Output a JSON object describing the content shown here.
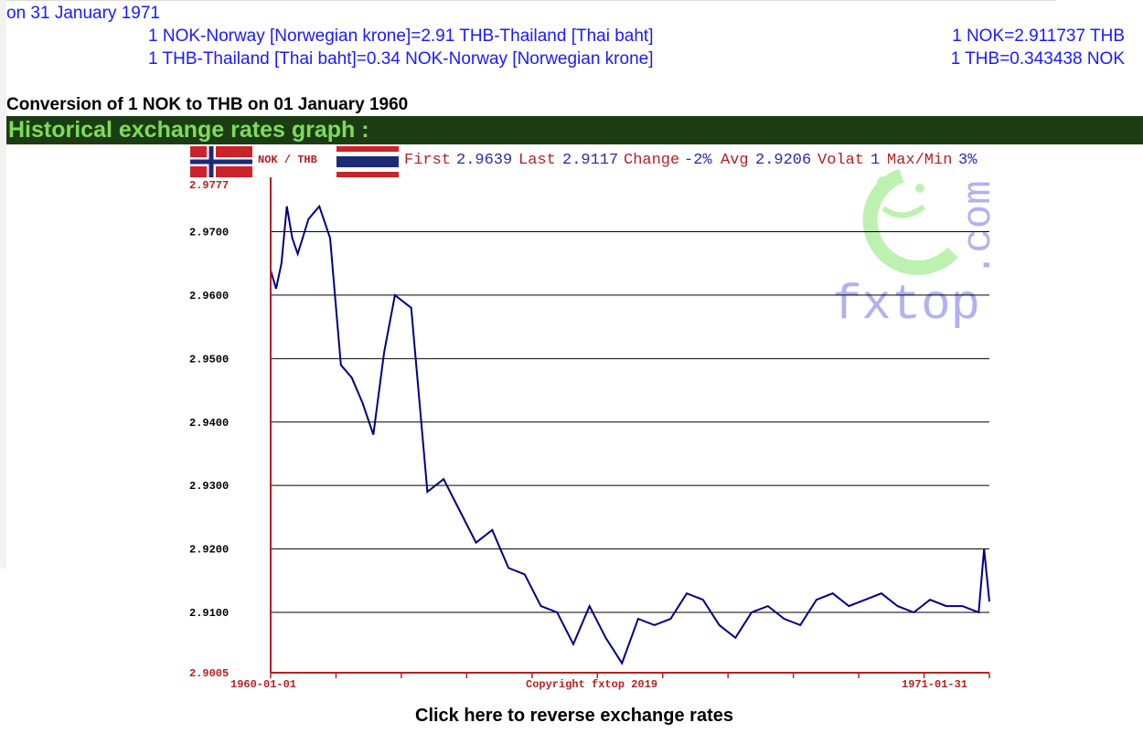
{
  "header": {
    "date_line": "on 31 January 1971",
    "rate_lines": [
      {
        "left": "1 NOK-Norway [Norwegian krone]=2.91 THB-Thailand [Thai baht]",
        "right": "1 NOK=2.911737 THB"
      },
      {
        "left": "1 THB-Thailand [Thai baht]=0.34 NOK-Norway [Norwegian krone]",
        "right": "1 THB=0.343438 NOK"
      }
    ],
    "conversion_title": "Conversion of 1 NOK to THB on 01 January 1960"
  },
  "graph_section": {
    "title": "Historical exchange rates graph :"
  },
  "chart_top": {
    "pair_label": "NOK / THB",
    "stats": [
      {
        "label": "First",
        "value": "2.9639"
      },
      {
        "label": "Last",
        "value": "2.9117"
      },
      {
        "label": "Change",
        "value": "-2%"
      },
      {
        "label": "Avg",
        "value": "2.9206"
      },
      {
        "label": "Volat",
        "value": "1"
      },
      {
        "label": "Max/Min",
        "value": "3%"
      }
    ],
    "watermark": {
      "site": "fxtop",
      "tld": ".com"
    },
    "copyright": "Copyright fxtop 2019"
  },
  "colors": {
    "line": "#000080",
    "axis": "#b22222",
    "grid": "#000000",
    "header_bg": "#1c3d14",
    "header_text": "#7ddc5a",
    "link_blue": "#1a1aff"
  },
  "chart_data": {
    "type": "line",
    "title": "",
    "xlabel": "",
    "ylabel": "",
    "ylim": [
      2.9005,
      2.9777
    ],
    "y_ticks": [
      "2.9777",
      "2.9700",
      "2.9600",
      "2.9500",
      "2.9400",
      "2.9300",
      "2.9200",
      "2.9100",
      "2.9005"
    ],
    "x_tick_labels": [
      "1960-01-01",
      "1971-01-31"
    ],
    "grid": true,
    "series": [
      {
        "x": [
          "1960-01",
          "1960-02",
          "1960-03",
          "1960-04",
          "1960-05",
          "1960-06",
          "1960-08",
          "1960-10",
          "1960-12",
          "1961-02",
          "1961-04",
          "1961-06",
          "1961-08",
          "1961-10",
          "1961-12",
          "1962-03",
          "1962-06",
          "1962-09",
          "1962-12",
          "1963-03",
          "1963-06",
          "1963-09",
          "1963-12",
          "1964-03",
          "1964-06",
          "1964-09",
          "1964-12",
          "1965-03",
          "1965-06",
          "1965-09",
          "1965-12",
          "1966-03",
          "1966-06",
          "1966-09",
          "1966-12",
          "1967-03",
          "1967-06",
          "1967-09",
          "1967-12",
          "1968-03",
          "1968-06",
          "1968-09",
          "1968-12",
          "1969-03",
          "1969-06",
          "1969-09",
          "1969-12",
          "1970-03",
          "1970-06",
          "1970-09",
          "1970-12",
          "1971-01",
          "1971-01-31"
        ],
        "values": [
          2.9639,
          2.961,
          2.965,
          2.974,
          2.969,
          2.9665,
          2.972,
          2.974,
          2.969,
          2.949,
          2.947,
          2.943,
          2.938,
          2.951,
          2.96,
          2.958,
          2.929,
          2.931,
          2.926,
          2.921,
          2.923,
          2.917,
          2.916,
          2.911,
          2.91,
          2.905,
          2.911,
          2.906,
          2.902,
          2.909,
          2.908,
          2.909,
          2.913,
          2.912,
          2.908,
          2.906,
          2.91,
          2.911,
          2.909,
          2.908,
          2.912,
          2.913,
          2.911,
          2.912,
          2.913,
          2.911,
          2.91,
          2.912,
          2.911,
          2.911,
          2.91,
          2.92,
          2.9117
        ]
      }
    ]
  },
  "footer": {
    "reverse_link": "Click here to reverse exchange rates"
  }
}
